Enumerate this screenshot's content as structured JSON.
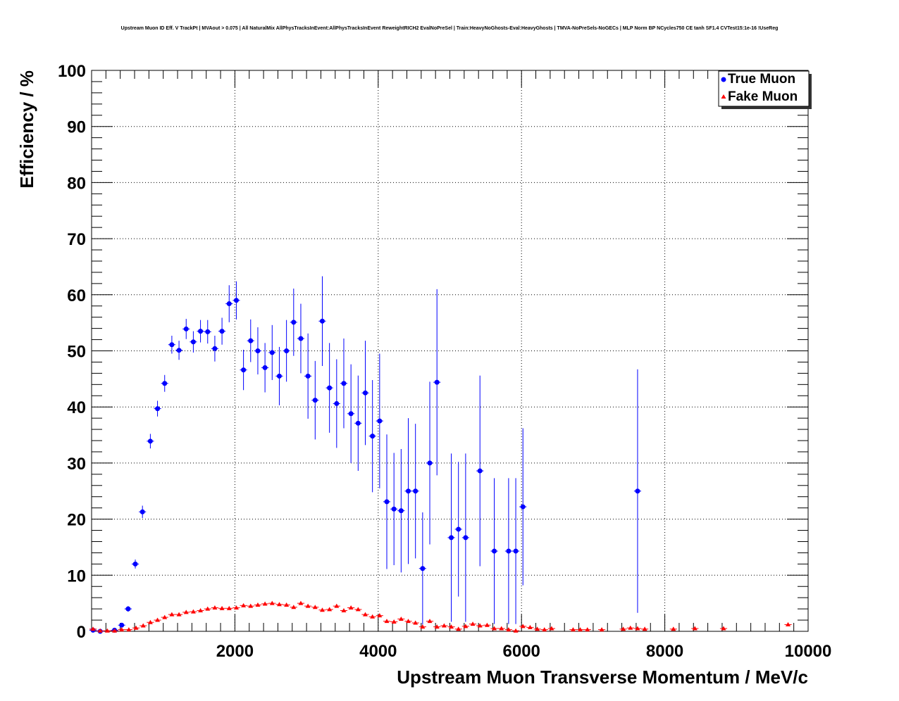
{
  "chart_data": {
    "type": "scatter",
    "title": "Upstream Muon ID Eff. V TrackPt | MVAout > 0.075 | All NaturalMix AllPhysTracksInEvent:AllPhysTracksInEvent ReweightRICH2 EvalNoPreSel | Train:HeavyNoGhosts-Eval:HeavyGhosts | TMVA-NoPreSels-NoGECs | MLP Norm BP NCycles750 CE tanh SF1.4 CVTest15:1e-16 !UseReg",
    "xlabel": "Upstream Muon Transverse Momentum / MeV/c",
    "ylabel": "Efficiency / %",
    "xlim": [
      0,
      10000
    ],
    "ylim": [
      0,
      100
    ],
    "x_ticks": [
      2000,
      4000,
      6000,
      8000,
      10000
    ],
    "y_ticks": [
      0,
      10,
      20,
      30,
      40,
      50,
      60,
      70,
      80,
      90,
      100
    ],
    "grid": true,
    "legend_position": "top-right",
    "series": [
      {
        "name": "True Muon",
        "color": "#0000ff",
        "marker": "circle",
        "points": [
          {
            "x": 20,
            "y": 0.2,
            "err": 0.2
          },
          {
            "x": 120,
            "y": 0.0,
            "err": 0.2
          },
          {
            "x": 320,
            "y": 0.2,
            "err": 0.2
          },
          {
            "x": 420,
            "y": 1.1,
            "err": 0.3
          },
          {
            "x": 510,
            "y": 4.0,
            "err": 0.5
          },
          {
            "x": 610,
            "y": 12.0,
            "err": 0.8
          },
          {
            "x": 710,
            "y": 21.3,
            "err": 1.1
          },
          {
            "x": 820,
            "y": 33.9,
            "err": 1.3
          },
          {
            "x": 920,
            "y": 39.7,
            "err": 1.4
          },
          {
            "x": 1020,
            "y": 44.2,
            "err": 1.5
          },
          {
            "x": 1120,
            "y": 51.1,
            "err": 1.6
          },
          {
            "x": 1220,
            "y": 50.1,
            "err": 1.7
          },
          {
            "x": 1320,
            "y": 53.9,
            "err": 1.8
          },
          {
            "x": 1420,
            "y": 51.6,
            "err": 1.9
          },
          {
            "x": 1520,
            "y": 53.5,
            "err": 2.0
          },
          {
            "x": 1620,
            "y": 53.4,
            "err": 2.1
          },
          {
            "x": 1720,
            "y": 50.4,
            "err": 2.3
          },
          {
            "x": 1820,
            "y": 53.5,
            "err": 2.4
          },
          {
            "x": 1920,
            "y": 58.4,
            "err": 3.3
          },
          {
            "x": 2020,
            "y": 59.0,
            "err": 3.4
          },
          {
            "x": 2120,
            "y": 46.6,
            "err": 3.6
          },
          {
            "x": 2220,
            "y": 51.8,
            "err": 3.8
          },
          {
            "x": 2320,
            "y": 50.0,
            "err": 4.2
          },
          {
            "x": 2420,
            "y": 47.0,
            "err": 4.4
          },
          {
            "x": 2520,
            "y": 49.7,
            "err": 4.9
          },
          {
            "x": 2620,
            "y": 45.5,
            "err": 5.2
          },
          {
            "x": 2720,
            "y": 50.0,
            "err": 5.5
          },
          {
            "x": 2820,
            "y": 55.1,
            "err": 6.0
          },
          {
            "x": 2920,
            "y": 52.2,
            "err": 6.2
          },
          {
            "x": 3020,
            "y": 45.5,
            "err": 7.6
          },
          {
            "x": 3120,
            "y": 41.2,
            "err": 7.0
          },
          {
            "x": 3220,
            "y": 55.3,
            "err": 8.0
          },
          {
            "x": 3320,
            "y": 43.4,
            "err": 8.0
          },
          {
            "x": 3420,
            "y": 40.6,
            "err": 7.9
          },
          {
            "x": 3520,
            "y": 44.2,
            "err": 8.0
          },
          {
            "x": 3620,
            "y": 38.8,
            "err": 8.8
          },
          {
            "x": 3720,
            "y": 37.1,
            "err": 8.5
          },
          {
            "x": 3820,
            "y": 42.5,
            "err": 9.3
          },
          {
            "x": 3920,
            "y": 34.8,
            "err": 10.0
          },
          {
            "x": 4020,
            "y": 37.5,
            "err": 12.0
          },
          {
            "x": 4120,
            "y": 23.1,
            "err": 12.0
          },
          {
            "x": 4220,
            "y": 21.8,
            "err": 10.0
          },
          {
            "x": 4320,
            "y": 21.5,
            "err": 11.0
          },
          {
            "x": 4420,
            "y": 25.0,
            "err": 13.0
          },
          {
            "x": 4520,
            "y": 25.0,
            "err": 12.0
          },
          {
            "x": 4620,
            "y": 11.2,
            "err": 10.0
          },
          {
            "x": 4720,
            "y": 30.0,
            "err": 14.5
          },
          {
            "x": 4820,
            "y": 44.4,
            "err": 16.6
          },
          {
            "x": 5020,
            "y": 16.7,
            "err": 15.0
          },
          {
            "x": 5120,
            "y": 18.2,
            "err": 12.0
          },
          {
            "x": 5220,
            "y": 16.7,
            "err": 15.0
          },
          {
            "x": 5420,
            "y": 28.6,
            "err": 17.0
          },
          {
            "x": 5620,
            "y": 14.3,
            "err": 13.0
          },
          {
            "x": 5820,
            "y": 14.3,
            "err": 13.0
          },
          {
            "x": 5920,
            "y": 14.3,
            "err": 13.0
          },
          {
            "x": 6020,
            "y": 22.2,
            "err": 14.0
          },
          {
            "x": 7620,
            "y": 25.0,
            "err": 21.7
          }
        ]
      },
      {
        "name": "Fake Muon",
        "color": "#ff0000",
        "marker": "triangle",
        "points": [
          {
            "x": 20,
            "y": 0.4
          },
          {
            "x": 120,
            "y": 0.1
          },
          {
            "x": 220,
            "y": 0.1
          },
          {
            "x": 320,
            "y": 0.1
          },
          {
            "x": 420,
            "y": 0.3
          },
          {
            "x": 520,
            "y": 0.3
          },
          {
            "x": 620,
            "y": 0.6
          },
          {
            "x": 720,
            "y": 1.0
          },
          {
            "x": 820,
            "y": 1.6
          },
          {
            "x": 920,
            "y": 2.0
          },
          {
            "x": 1020,
            "y": 2.5
          },
          {
            "x": 1120,
            "y": 3.0
          },
          {
            "x": 1220,
            "y": 3.0
          },
          {
            "x": 1320,
            "y": 3.4
          },
          {
            "x": 1420,
            "y": 3.5
          },
          {
            "x": 1520,
            "y": 3.7
          },
          {
            "x": 1620,
            "y": 4.0
          },
          {
            "x": 1720,
            "y": 4.2
          },
          {
            "x": 1820,
            "y": 4.1
          },
          {
            "x": 1920,
            "y": 4.1
          },
          {
            "x": 2020,
            "y": 4.2
          },
          {
            "x": 2120,
            "y": 4.6
          },
          {
            "x": 2220,
            "y": 4.5
          },
          {
            "x": 2320,
            "y": 4.7
          },
          {
            "x": 2420,
            "y": 4.9
          },
          {
            "x": 2520,
            "y": 5.0
          },
          {
            "x": 2620,
            "y": 4.8
          },
          {
            "x": 2720,
            "y": 4.7
          },
          {
            "x": 2820,
            "y": 4.3
          },
          {
            "x": 2920,
            "y": 5.0
          },
          {
            "x": 3020,
            "y": 4.5
          },
          {
            "x": 3120,
            "y": 4.3
          },
          {
            "x": 3220,
            "y": 3.8
          },
          {
            "x": 3320,
            "y": 3.9
          },
          {
            "x": 3420,
            "y": 4.5
          },
          {
            "x": 3520,
            "y": 3.7
          },
          {
            "x": 3620,
            "y": 4.2
          },
          {
            "x": 3720,
            "y": 3.9
          },
          {
            "x": 3820,
            "y": 3.0
          },
          {
            "x": 3920,
            "y": 2.6
          },
          {
            "x": 4020,
            "y": 2.8
          },
          {
            "x": 4120,
            "y": 1.8
          },
          {
            "x": 4220,
            "y": 1.7
          },
          {
            "x": 4320,
            "y": 2.2
          },
          {
            "x": 4420,
            "y": 1.8
          },
          {
            "x": 4520,
            "y": 1.5
          },
          {
            "x": 4620,
            "y": 0.8
          },
          {
            "x": 4720,
            "y": 1.8
          },
          {
            "x": 4820,
            "y": 0.8
          },
          {
            "x": 4920,
            "y": 1.0
          },
          {
            "x": 5020,
            "y": 0.8
          },
          {
            "x": 5120,
            "y": 0.4
          },
          {
            "x": 5220,
            "y": 0.9
          },
          {
            "x": 5320,
            "y": 1.3
          },
          {
            "x": 5420,
            "y": 1.0
          },
          {
            "x": 5520,
            "y": 1.1
          },
          {
            "x": 5620,
            "y": 0.5
          },
          {
            "x": 5720,
            "y": 0.5
          },
          {
            "x": 5820,
            "y": 0.3
          },
          {
            "x": 5920,
            "y": 0.1
          },
          {
            "x": 6020,
            "y": 0.9
          },
          {
            "x": 6120,
            "y": 0.7
          },
          {
            "x": 6220,
            "y": 0.4
          },
          {
            "x": 6320,
            "y": 0.3
          },
          {
            "x": 6420,
            "y": 0.5
          },
          {
            "x": 6720,
            "y": 0.3
          },
          {
            "x": 6820,
            "y": 0.3
          },
          {
            "x": 6920,
            "y": 0.3
          },
          {
            "x": 7120,
            "y": 0.3
          },
          {
            "x": 7420,
            "y": 0.4
          },
          {
            "x": 7520,
            "y": 0.6
          },
          {
            "x": 7620,
            "y": 0.5
          },
          {
            "x": 7720,
            "y": 0.4
          },
          {
            "x": 8120,
            "y": 0.4
          },
          {
            "x": 8420,
            "y": 0.5
          },
          {
            "x": 8820,
            "y": 0.5
          },
          {
            "x": 9720,
            "y": 1.2
          }
        ]
      }
    ]
  }
}
